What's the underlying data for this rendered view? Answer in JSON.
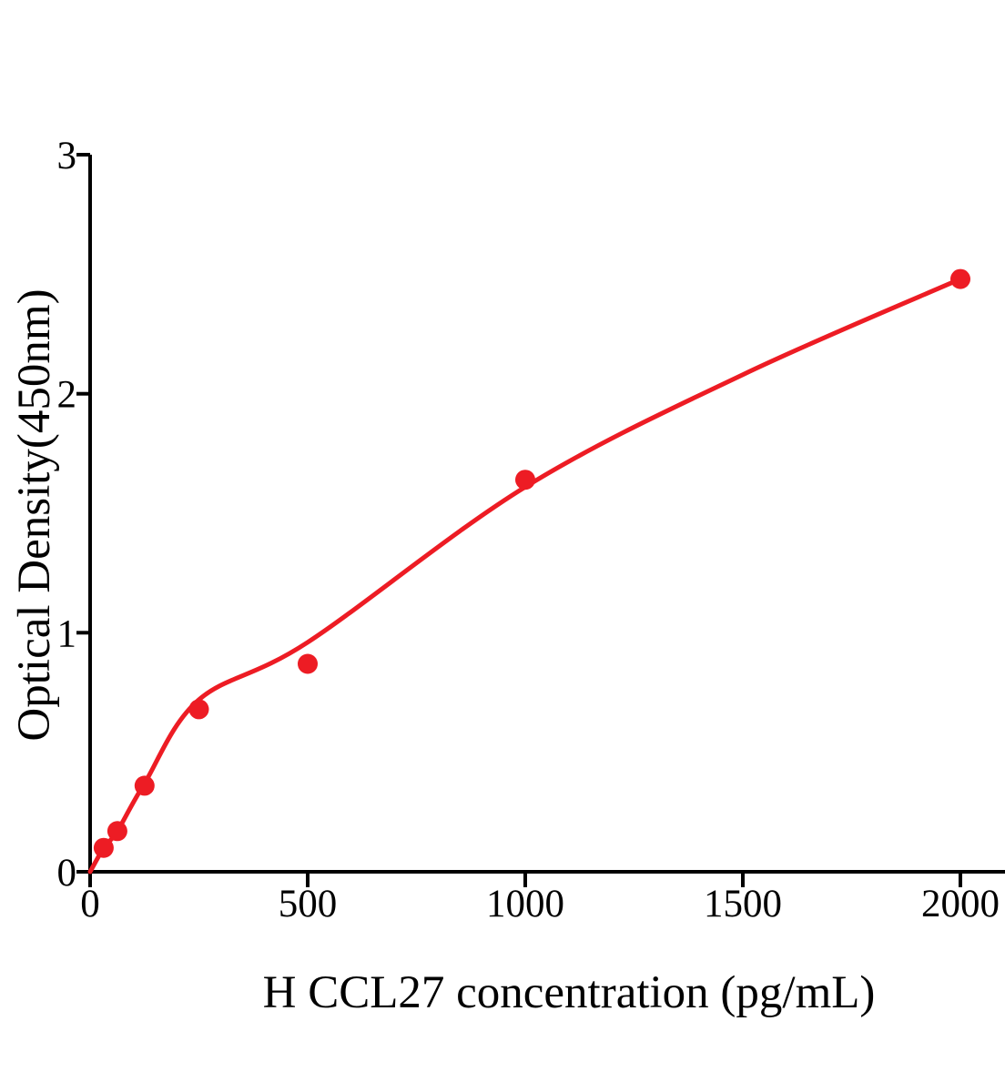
{
  "page": {
    "background_color": "#ffffff"
  },
  "chart_data": {
    "type": "scatter",
    "title": "",
    "xlabel": "H CCL27 concentration (pg/mL)",
    "ylabel": "Optical Density(450nm)",
    "xlim": [
      0,
      2100
    ],
    "ylim": [
      0,
      3
    ],
    "x_ticks": [
      0,
      500,
      1000,
      1500,
      2000
    ],
    "y_ticks": [
      0,
      1,
      2,
      3
    ],
    "grid": false,
    "legend": "none",
    "colors": {
      "axis": "#000000",
      "series": "#ed1c24"
    },
    "series": [
      {
        "marker": "circle",
        "marker_color": "#ed1c24",
        "line_color": "#ed1c24",
        "points": [
          {
            "x": 31.25,
            "y": 0.1
          },
          {
            "x": 62.5,
            "y": 0.17
          },
          {
            "x": 125,
            "y": 0.36
          },
          {
            "x": 250,
            "y": 0.68
          },
          {
            "x": 500,
            "y": 0.87
          },
          {
            "x": 1000,
            "y": 1.64
          },
          {
            "x": 2000,
            "y": 2.48
          }
        ],
        "fit_curve": [
          {
            "x": 0,
            "y": 0.0
          },
          {
            "x": 31.25,
            "y": 0.1
          },
          {
            "x": 62.5,
            "y": 0.17
          },
          {
            "x": 125,
            "y": 0.37
          },
          {
            "x": 250,
            "y": 0.72
          },
          {
            "x": 500,
            "y": 0.96
          },
          {
            "x": 1000,
            "y": 1.61
          },
          {
            "x": 1500,
            "y": 2.08
          },
          {
            "x": 2000,
            "y": 2.48
          }
        ]
      }
    ]
  }
}
